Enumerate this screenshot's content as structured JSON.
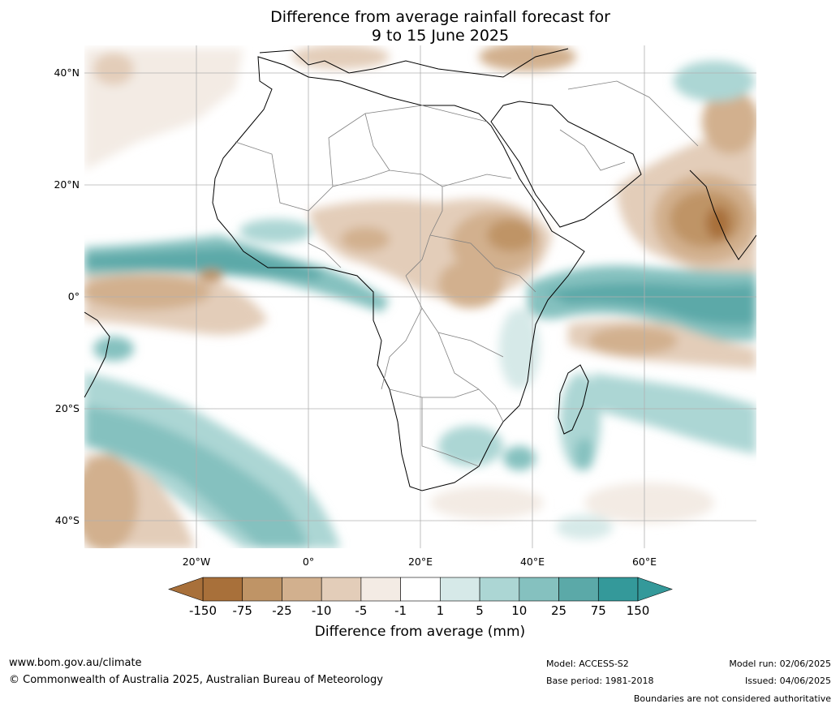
{
  "title": {
    "line1": "Difference from average rainfall forecast for",
    "line2": "9 to 15 June 2025"
  },
  "map": {
    "lat_labels": [
      {
        "text": "40°N",
        "lat": 40
      },
      {
        "text": "20°N",
        "lat": 20
      },
      {
        "text": "0°",
        "lat": 0
      },
      {
        "text": "20°S",
        "lat": -20
      },
      {
        "text": "40°S",
        "lat": -40
      }
    ],
    "lon_labels": [
      {
        "text": "20°W",
        "lon": -20
      },
      {
        "text": "0°",
        "lon": 0
      },
      {
        "text": "20°E",
        "lon": 20
      },
      {
        "text": "40°E",
        "lon": 40
      },
      {
        "text": "60°E",
        "lon": 60
      }
    ],
    "extent": {
      "lon_min": -40,
      "lon_max": 80,
      "lat_min": -45,
      "lat_max": 45
    }
  },
  "colorbar": {
    "title": "Difference from average (mm)",
    "ticks": [
      "-150",
      "-75",
      "-25",
      "-10",
      "-5",
      "-1",
      "1",
      "5",
      "10",
      "25",
      "75",
      "150"
    ],
    "colors": [
      "#a8703a",
      "#bf9466",
      "#d2b08e",
      "#e3cdb9",
      "#f3ebe4",
      "#ffffff",
      "#d6e9e8",
      "#acd6d4",
      "#85c1bf",
      "#5ba9a8",
      "#34999a"
    ],
    "under_color": "#a8703a",
    "over_color": "#34999a"
  },
  "footer": {
    "website": "www.bom.gov.au/climate",
    "copyright": "© Commonwealth of Australia 2025, Australian Bureau of Meteorology",
    "model": "Model: ACCESS-S2",
    "base_period": "Base period: 1981-2018",
    "model_run": "Model run: 02/06/2025",
    "issued": "Issued: 04/06/2025",
    "boundaries": "Boundaries are not considered authoritative"
  }
}
